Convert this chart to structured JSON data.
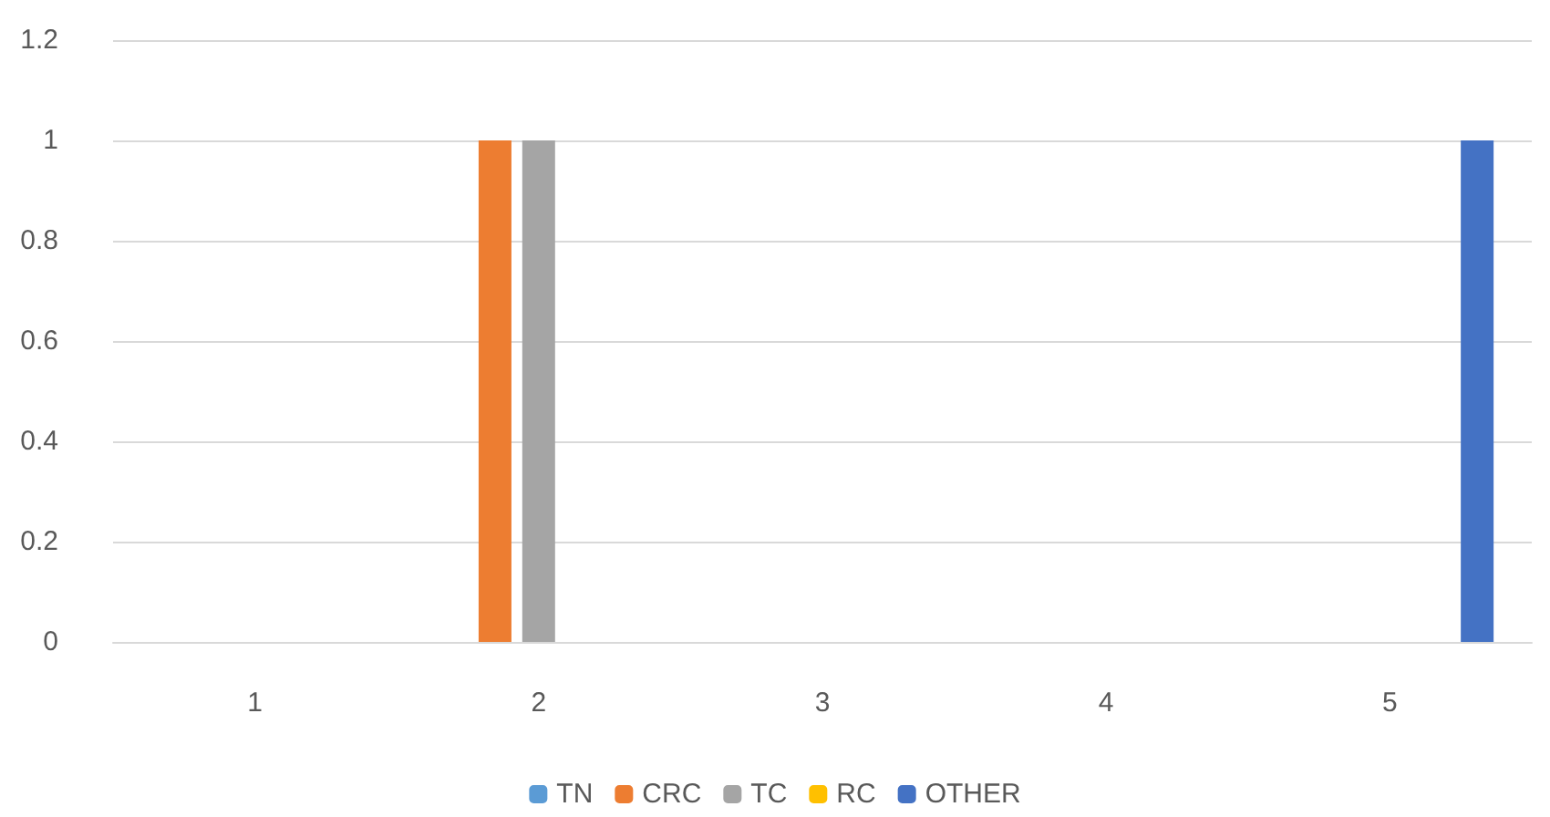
{
  "chart_data": {
    "type": "bar",
    "categories": [
      "1",
      "2",
      "3",
      "4",
      "5"
    ],
    "series": [
      {
        "name": "TN",
        "color": "#5b9bd5",
        "values": [
          0,
          0,
          0,
          0,
          0
        ]
      },
      {
        "name": "CRC",
        "color": "#ed7d31",
        "values": [
          0,
          1,
          0,
          0,
          0
        ]
      },
      {
        "name": "TC",
        "color": "#a5a5a5",
        "values": [
          0,
          1,
          0,
          0,
          0
        ]
      },
      {
        "name": "RC",
        "color": "#ffc000",
        "values": [
          0,
          0,
          0,
          0,
          0
        ]
      },
      {
        "name": "OTHER",
        "color": "#4472c4",
        "values": [
          0,
          0,
          0,
          0,
          1
        ]
      }
    ],
    "ylim": [
      0,
      1.2
    ],
    "yticks": [
      0,
      0.2,
      0.4,
      0.6,
      0.8,
      1,
      1.2
    ],
    "grid": "y",
    "legend": "bottom"
  }
}
